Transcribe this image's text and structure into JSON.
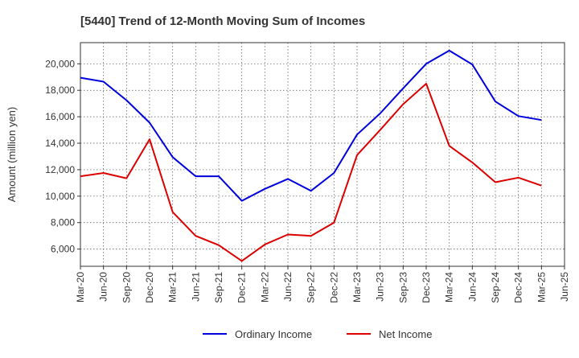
{
  "chart_data": {
    "type": "line",
    "title": "[5440]  Trend of 12-Month Moving Sum of Incomes",
    "xlabel": "",
    "ylabel": "Amount (million yen)",
    "categories": [
      "Mar-20",
      "Jun-20",
      "Sep-20",
      "Dec-20",
      "Mar-21",
      "Jun-21",
      "Sep-21",
      "Dec-21",
      "Mar-22",
      "Jun-22",
      "Sep-22",
      "Dec-22",
      "Mar-23",
      "Jun-23",
      "Sep-23",
      "Dec-23",
      "Mar-24",
      "Jun-24",
      "Sep-24",
      "Dec-24",
      "Mar-25",
      "Jun-25"
    ],
    "ylim": [
      4700,
      21600
    ],
    "yticks": [
      6000,
      8000,
      10000,
      12000,
      14000,
      16000,
      18000,
      20000
    ],
    "ytick_labels": [
      "6,000",
      "8,000",
      "10,000",
      "12,000",
      "14,000",
      "16,000",
      "18,000",
      "20,000"
    ],
    "grid": true,
    "legend_position": "bottom-center",
    "series": [
      {
        "name": "Ordinary Income",
        "color": "#0000dd",
        "values": [
          18950,
          18650,
          17250,
          15550,
          12950,
          11500,
          11500,
          9650,
          10550,
          11300,
          10400,
          11750,
          14650,
          16250,
          18150,
          20000,
          21000,
          19950,
          17150,
          16050,
          15750,
          null
        ]
      },
      {
        "name": "Net Income",
        "color": "#dd0000",
        "values": [
          11500,
          11750,
          11350,
          14300,
          8800,
          7000,
          6300,
          5100,
          6350,
          7100,
          7000,
          8000,
          13100,
          15000,
          16950,
          18500,
          13800,
          12550,
          11050,
          11400,
          10800,
          null
        ]
      }
    ]
  }
}
